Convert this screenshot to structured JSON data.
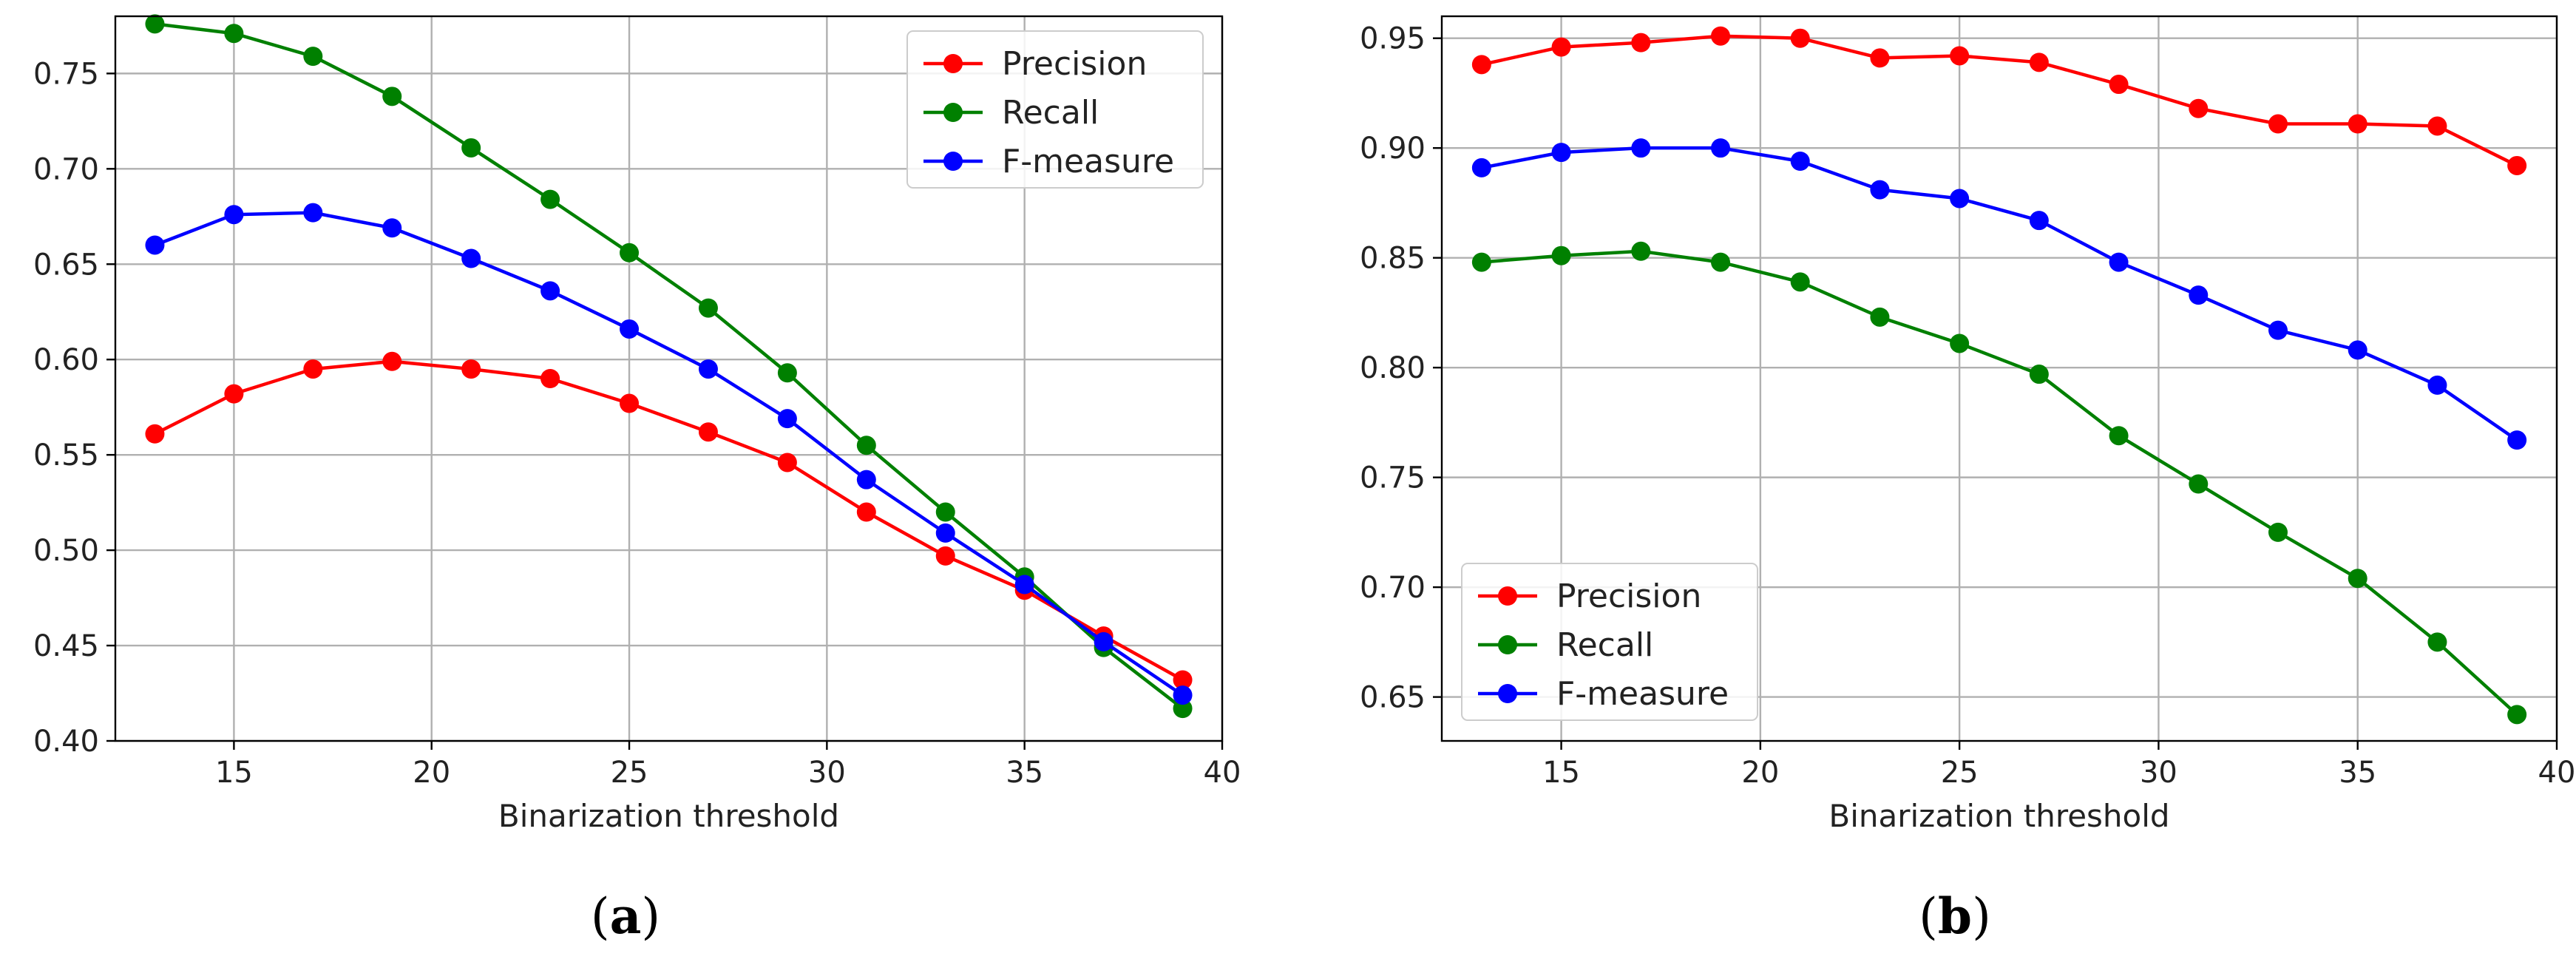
{
  "chart_data": [
    {
      "id": "a",
      "type": "line",
      "caption_letter": "a",
      "caption_open": "(",
      "caption_close": ")",
      "xlabel": "Binarization threshold",
      "ylabel": "",
      "xlim": [
        12,
        40
      ],
      "ylim": [
        0.4,
        0.78
      ],
      "xticks": [
        15,
        20,
        25,
        30,
        35,
        40
      ],
      "xtick_labels": [
        "15",
        "20",
        "25",
        "30",
        "35",
        "40"
      ],
      "yticks": [
        0.4,
        0.45,
        0.5,
        0.55,
        0.6,
        0.65,
        0.7,
        0.75
      ],
      "ytick_labels": [
        "0.40",
        "0.45",
        "0.50",
        "0.55",
        "0.60",
        "0.65",
        "0.70",
        "0.75"
      ],
      "grid": true,
      "legend_position": "top-right",
      "x": [
        13,
        15,
        17,
        19,
        21,
        23,
        25,
        27,
        29,
        31,
        33,
        35,
        37,
        39
      ],
      "series": [
        {
          "name": "Precision",
          "color": "#ff0000",
          "values": [
            0.561,
            0.582,
            0.595,
            0.599,
            0.595,
            0.59,
            0.577,
            0.562,
            0.546,
            0.52,
            0.497,
            0.479,
            0.455,
            0.432
          ]
        },
        {
          "name": "Recall",
          "color": "#008000",
          "values": [
            0.776,
            0.771,
            0.759,
            0.738,
            0.711,
            0.684,
            0.656,
            0.627,
            0.593,
            0.555,
            0.52,
            0.486,
            0.449,
            0.417
          ]
        },
        {
          "name": "F-measure",
          "color": "#0000ff",
          "values": [
            0.66,
            0.676,
            0.677,
            0.669,
            0.653,
            0.636,
            0.616,
            0.595,
            0.569,
            0.537,
            0.509,
            0.482,
            0.452,
            0.424
          ]
        }
      ]
    },
    {
      "id": "b",
      "type": "line",
      "caption_letter": "b",
      "caption_open": "(",
      "caption_close": ")",
      "xlabel": "Binarization threshold",
      "ylabel": "",
      "xlim": [
        12,
        40
      ],
      "ylim": [
        0.63,
        0.96
      ],
      "xticks": [
        15,
        20,
        25,
        30,
        35,
        40
      ],
      "xtick_labels": [
        "15",
        "20",
        "25",
        "30",
        "35",
        "40"
      ],
      "yticks": [
        0.65,
        0.7,
        0.75,
        0.8,
        0.85,
        0.9,
        0.95
      ],
      "ytick_labels": [
        "0.65",
        "0.70",
        "0.75",
        "0.80",
        "0.85",
        "0.90",
        "0.95"
      ],
      "grid": true,
      "legend_position": "bottom-left",
      "x": [
        13,
        15,
        17,
        19,
        21,
        23,
        25,
        27,
        29,
        31,
        33,
        35,
        37,
        39
      ],
      "series": [
        {
          "name": "Precision",
          "color": "#ff0000",
          "values": [
            0.938,
            0.946,
            0.948,
            0.951,
            0.95,
            0.941,
            0.942,
            0.939,
            0.929,
            0.918,
            0.911,
            0.911,
            0.91,
            0.892
          ]
        },
        {
          "name": "Recall",
          "color": "#008000",
          "values": [
            0.848,
            0.851,
            0.853,
            0.848,
            0.839,
            0.823,
            0.811,
            0.797,
            0.769,
            0.747,
            0.725,
            0.704,
            0.675,
            0.642
          ]
        },
        {
          "name": "F-measure",
          "color": "#0000ff",
          "values": [
            0.891,
            0.898,
            0.9,
            0.9,
            0.894,
            0.881,
            0.877,
            0.867,
            0.848,
            0.833,
            0.817,
            0.808,
            0.792,
            0.767
          ]
        }
      ]
    }
  ]
}
